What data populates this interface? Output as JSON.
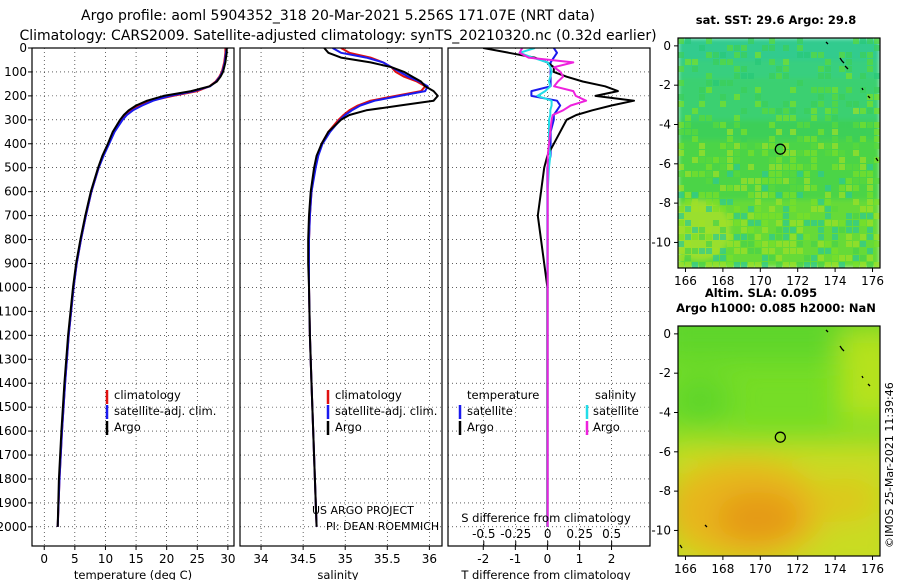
{
  "header": {
    "line1": "Argo profile: aoml 5904352_318 20-Mar-2021 5.256S 171.07E (NRT data)",
    "line2": "Climatology: CARS2009. Satellite-adjusted climatology: synTS_20210320.nc (0.32d earlier)"
  },
  "credits": {
    "project": "US ARGO PROJECT",
    "pi": "PI: DEAN ROEMMICH",
    "imos": "©IMOS 25-Mar-2021 11:39:46"
  },
  "colors": {
    "climatology": "#e01010",
    "satellite": "#1a1aee",
    "argo": "#000000",
    "sat_salinity": "#22dde8",
    "argo_salinity": "#ee22dd"
  },
  "chart_data": [
    {
      "type": "line",
      "id": "temperature",
      "xlabel": "temperature (deg C)",
      "ylabel": "depth",
      "xlim": [
        -2,
        31
      ],
      "ylim": [
        2080,
        0
      ],
      "grid": true,
      "xticks": [
        0,
        5,
        10,
        15,
        20,
        25,
        30
      ],
      "yticks": [
        0,
        100,
        200,
        300,
        400,
        500,
        600,
        700,
        800,
        900,
        1000,
        1100,
        1200,
        1300,
        1400,
        1500,
        1600,
        1700,
        1800,
        1900,
        2000
      ],
      "legend": [
        "climatology",
        "satellite-adj. clim.",
        "Argo"
      ],
      "legend_position": "bottom-right",
      "depth": [
        0,
        20,
        40,
        60,
        80,
        100,
        120,
        140,
        160,
        180,
        200,
        220,
        240,
        260,
        280,
        300,
        350,
        400,
        450,
        500,
        600,
        700,
        800,
        900,
        1000,
        1200,
        1400,
        1600,
        1800,
        2000
      ],
      "series": [
        {
          "name": "climatology",
          "values": [
            29.6,
            29.6,
            29.5,
            29.4,
            29.2,
            29.0,
            28.6,
            28.0,
            27.0,
            25.0,
            21.0,
            17.5,
            15.6,
            14.2,
            13.3,
            12.6,
            11.4,
            10.5,
            9.6,
            8.9,
            7.7,
            6.8,
            6.0,
            5.3,
            4.8,
            4.0,
            3.4,
            2.9,
            2.5,
            2.2
          ]
        },
        {
          "name": "satellite-adj. clim.",
          "values": [
            29.8,
            29.7,
            29.6,
            29.5,
            29.3,
            29.1,
            28.7,
            28.1,
            27.1,
            24.5,
            20.5,
            17.8,
            16.0,
            14.5,
            13.5,
            12.8,
            11.5,
            10.6,
            9.7,
            8.9,
            7.7,
            6.8,
            6.0,
            5.3,
            4.8,
            4.0,
            3.4,
            2.9,
            2.5,
            2.2
          ]
        },
        {
          "name": "Argo",
          "values": [
            29.8,
            29.8,
            29.7,
            29.6,
            29.4,
            29.2,
            28.8,
            28.2,
            27.0,
            24.0,
            19.5,
            16.8,
            15.0,
            13.8,
            13.0,
            12.4,
            11.2,
            10.4,
            9.5,
            8.8,
            7.6,
            6.7,
            5.9,
            5.2,
            4.7,
            3.9,
            3.3,
            2.8,
            2.4,
            2.2
          ]
        }
      ]
    },
    {
      "type": "line",
      "id": "salinity",
      "xlabel": "salinity",
      "ylabel": "depth",
      "xlim": [
        33.75,
        36.15
      ],
      "ylim": [
        2080,
        0
      ],
      "grid": true,
      "xticks": [
        34,
        34.5,
        35,
        35.5,
        36
      ],
      "legend": [
        "climatology",
        "satellite-adj. clim.",
        "Argo"
      ],
      "legend_position": "bottom-right",
      "depth": [
        0,
        20,
        40,
        60,
        80,
        100,
        120,
        140,
        160,
        180,
        200,
        220,
        240,
        260,
        280,
        300,
        350,
        400,
        450,
        500,
        600,
        700,
        800,
        900,
        1000,
        1200,
        1400,
        1600,
        1800,
        2000
      ],
      "series": [
        {
          "name": "climatology",
          "values": [
            34.95,
            35.05,
            35.3,
            35.45,
            35.55,
            35.6,
            35.7,
            35.85,
            35.95,
            35.9,
            35.6,
            35.3,
            35.15,
            35.05,
            34.98,
            34.92,
            34.8,
            34.72,
            34.67,
            34.64,
            34.6,
            34.58,
            34.57,
            34.57,
            34.57,
            34.58,
            34.6,
            34.62,
            34.64,
            34.66
          ]
        },
        {
          "name": "satellite-adj. clim.",
          "values": [
            34.85,
            34.95,
            35.25,
            35.45,
            35.55,
            35.65,
            35.75,
            35.88,
            35.98,
            35.95,
            35.65,
            35.35,
            35.18,
            35.08,
            35.0,
            34.94,
            34.82,
            34.73,
            34.68,
            34.65,
            34.6,
            34.58,
            34.57,
            34.57,
            34.57,
            34.58,
            34.6,
            34.62,
            34.64,
            34.66
          ]
        },
        {
          "name": "Argo",
          "values": [
            34.75,
            34.8,
            34.95,
            35.3,
            35.55,
            35.7,
            35.8,
            35.9,
            35.95,
            36.05,
            36.1,
            36.05,
            35.65,
            35.25,
            35.05,
            34.95,
            34.8,
            34.72,
            34.66,
            34.63,
            34.59,
            34.57,
            34.56,
            34.56,
            34.57,
            34.58,
            34.6,
            34.62,
            34.64,
            34.66
          ]
        }
      ]
    },
    {
      "type": "line",
      "id": "differences",
      "xlabel": "T difference from climatology",
      "xlabel_top": "S difference from climatology",
      "ylim": [
        2080,
        0
      ],
      "grid": true,
      "xlim_T": [
        -3.1,
        3.2
      ],
      "xticks_T": [
        -2,
        -1,
        0,
        1,
        2
      ],
      "xlim_S": [
        -0.78,
        0.8
      ],
      "xticks_S": [
        -0.5,
        -0.25,
        0,
        0.25,
        0.5
      ],
      "xticklabels_S": [
        "-0.5",
        "-0.25",
        "0",
        "0.25",
        "0.5"
      ],
      "legend_titles": [
        "temperature",
        "salinity"
      ],
      "legend_entries": [
        "satellite",
        "Argo",
        "satellite",
        "Argo"
      ],
      "depth": [
        0,
        20,
        40,
        60,
        80,
        100,
        120,
        140,
        160,
        180,
        200,
        220,
        240,
        260,
        280,
        300,
        350,
        400,
        450,
        500,
        600,
        700,
        800,
        900,
        1000,
        1200,
        1400,
        1600,
        1800,
        2000
      ],
      "series": [
        {
          "name": "T satellite",
          "axis": "T",
          "values": [
            0.2,
            0.3,
            0.2,
            0.1,
            0.1,
            0.1,
            0.1,
            0.1,
            0.1,
            -0.5,
            -0.5,
            0.3,
            0.4,
            0.3,
            0.2,
            0.2,
            0.1,
            0.1,
            0.1,
            0.0,
            0.0,
            0.0,
            0.0,
            0.0,
            0.0,
            0.0,
            0.0,
            0.0,
            0.0,
            0.0
          ]
        },
        {
          "name": "T Argo",
          "axis": "T",
          "values": [
            -2.0,
            -1.2,
            -0.4,
            0.0,
            0.2,
            0.2,
            0.6,
            1.1,
            1.8,
            2.2,
            1.5,
            2.7,
            2.0,
            1.4,
            0.9,
            0.6,
            0.4,
            0.2,
            0.0,
            -0.1,
            -0.2,
            -0.3,
            -0.2,
            -0.1,
            0.0,
            0.0,
            0.0,
            0.0,
            0.0,
            0.0
          ]
        },
        {
          "name": "S satellite",
          "axis": "S",
          "values": [
            -0.1,
            -0.22,
            -0.12,
            0.0,
            0.02,
            0.03,
            0.02,
            0.01,
            0.02,
            -0.02,
            -0.08,
            0.03,
            0.03,
            0.02,
            0.02,
            0.01,
            0.01,
            0.01,
            0.02,
            0.01,
            0.0,
            0.0,
            0.0,
            0.0,
            0.0,
            0.0,
            0.0,
            0.0,
            0.0,
            0.0
          ]
        },
        {
          "name": "S Argo",
          "axis": "S",
          "values": [
            -0.2,
            -0.22,
            -0.15,
            0.2,
            0.05,
            0.1,
            0.12,
            0.08,
            0.05,
            0.2,
            0.22,
            0.3,
            0.18,
            0.12,
            0.04,
            0.03,
            0.02,
            0.01,
            0.0,
            0.0,
            0.0,
            0.0,
            0.0,
            0.0,
            0.0,
            0.0,
            0.0,
            0.0,
            0.0,
            0.0
          ]
        }
      ]
    },
    {
      "type": "heatmap",
      "id": "sst-map",
      "title": "sat. SST: 29.6 Argo: 29.8",
      "xticks": [
        166,
        168,
        170,
        172,
        174,
        176
      ],
      "yticks": [
        0,
        -2,
        -4,
        -6,
        -8,
        -10
      ],
      "xlim": [
        165.6,
        176.4
      ],
      "ylim": [
        -11.3,
        0.4
      ],
      "marker": {
        "lon": 171.07,
        "lat": -5.256
      }
    },
    {
      "type": "heatmap",
      "id": "sla-map",
      "title_line1": "Altim. SLA: 0.095",
      "title_line2": "Argo h1000: 0.085 h2000: NaN",
      "xticks": [
        166,
        168,
        170,
        172,
        174,
        176
      ],
      "yticks": [
        0,
        -2,
        -4,
        -6,
        -8,
        -10
      ],
      "xlim": [
        165.6,
        176.4
      ],
      "ylim": [
        -11.3,
        0.4
      ],
      "marker": {
        "lon": 171.07,
        "lat": -5.256
      }
    }
  ]
}
